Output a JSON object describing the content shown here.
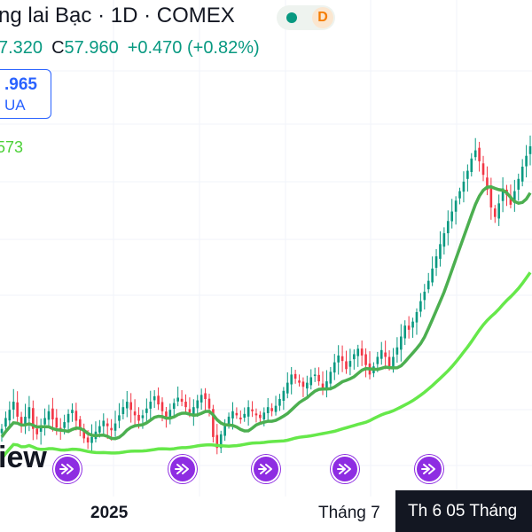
{
  "header": {
    "title": "ng lai Bạc · 1D · COMEX",
    "interval_badge": "D",
    "status_color": "#089981"
  },
  "ohlc": {
    "open_partial": "7.320",
    "close_label": "C",
    "close_value": "57.960",
    "change": "+0.470 (+0.82%)"
  },
  "price_box": {
    "value": ".965",
    "action": "UA"
  },
  "ma_label": {
    "value": "573",
    "color": "#4cd137"
  },
  "logo_text": "iew",
  "x_axis": {
    "labels": [
      {
        "text": "2025",
        "bold": true
      },
      {
        "text": "Tháng 7",
        "bold": false
      }
    ],
    "crosshair_label": "Th 6 05 Tháng"
  },
  "events": {
    "count": 5,
    "icon": "fast-forward-arrow-icon",
    "color": "#8e2de2"
  },
  "chart_data": {
    "type": "candlestick",
    "up_color": "#089981",
    "down_color": "#f23645",
    "ma_fast_color": "#4caf50",
    "ma_slow_color": "#66e84a",
    "grid": true,
    "legend": "none",
    "ylim": [
      27,
      58
    ],
    "close_series": [
      31.0,
      31.8,
      32.4,
      33.0,
      31.9,
      31.2,
      31.9,
      32.6,
      31.0,
      30.6,
      31.2,
      31.8,
      32.3,
      31.7,
      31.1,
      30.9,
      31.5,
      32.1,
      32.4,
      31.6,
      31.0,
      30.3,
      30.0,
      30.4,
      30.8,
      31.2,
      31.6,
      31.2,
      30.9,
      31.4,
      32.0,
      32.6,
      33.0,
      32.4,
      32.0,
      31.6,
      32.0,
      32.5,
      33.0,
      33.4,
      32.8,
      32.3,
      31.9,
      32.4,
      32.9,
      33.3,
      33.0,
      32.6,
      32.2,
      32.6,
      33.1,
      33.5,
      33.2,
      32.5,
      30.4,
      29.6,
      30.6,
      31.4,
      31.9,
      32.3,
      32.0,
      31.7,
      32.1,
      32.6,
      32.3,
      32.0,
      31.8,
      32.2,
      32.6,
      32.3,
      32.7,
      33.2,
      33.8,
      34.4,
      35.0,
      34.7,
      34.4,
      34.1,
      34.4,
      34.8,
      35.0,
      34.5,
      34.0,
      34.5,
      35.2,
      35.9,
      36.4,
      36.0,
      35.4,
      36.0,
      36.5,
      36.9,
      36.4,
      35.7,
      35.0,
      35.6,
      36.3,
      36.8,
      36.3,
      35.6,
      36.3,
      37.0,
      37.8,
      38.6,
      38.3,
      38.9,
      39.6,
      40.4,
      41.1,
      41.9,
      42.8,
      43.7,
      44.6,
      45.4,
      46.3,
      47.0,
      47.8,
      48.5,
      49.2,
      50.0,
      50.9,
      51.5,
      50.7,
      49.7,
      48.6,
      47.3,
      46.6,
      47.6,
      48.7,
      48.2,
      47.5,
      48.5,
      49.4,
      50.3,
      51.1,
      51.8
    ]
  }
}
